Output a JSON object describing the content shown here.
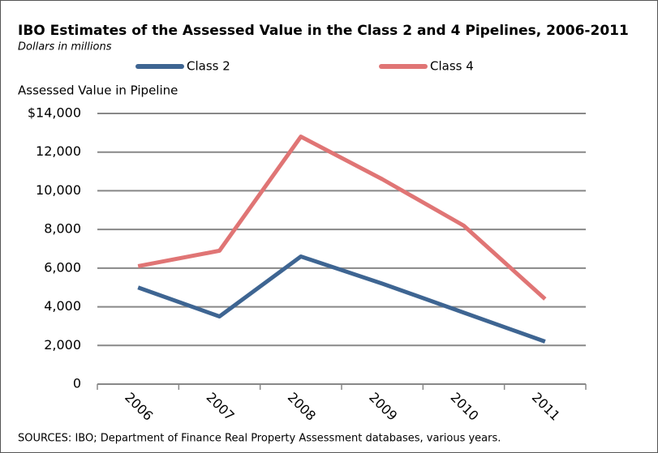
{
  "chart_data": {
    "type": "line",
    "title": "IBO Estimates of the Assessed Value in the Class 2 and 4 Pipelines, 2006-2011",
    "subtitle": "Dollars in millions",
    "y_axis_label": "Assessed Value in Pipeline",
    "source": "SOURCES: IBO; Department of Finance Real Property Assessment databases, various years.",
    "categories": [
      "2006",
      "2007",
      "2008",
      "2009",
      "2010",
      "2011"
    ],
    "series": [
      {
        "name": "Class 2",
        "color": "#3e6592",
        "values": [
          5000,
          3500,
          6600,
          5200,
          3700,
          2200
        ]
      },
      {
        "name": "Class 4",
        "color": "#e07575",
        "values": [
          6100,
          6900,
          12800,
          10600,
          8200,
          4400
        ]
      }
    ],
    "ylim": [
      0,
      14000
    ],
    "yticks": [
      0,
      {
        "value": 2000,
        "label": "2,000"
      },
      {
        "value": 4000,
        "label": "4,000"
      },
      {
        "value": 6000,
        "label": "6,000"
      },
      {
        "value": 8000,
        "label": "8,000"
      },
      {
        "value": 10000,
        "label": "10,000"
      },
      {
        "value": 12000,
        "label": "12,000"
      },
      {
        "value": 14000,
        "label": "$14,000"
      }
    ],
    "grid": true
  }
}
